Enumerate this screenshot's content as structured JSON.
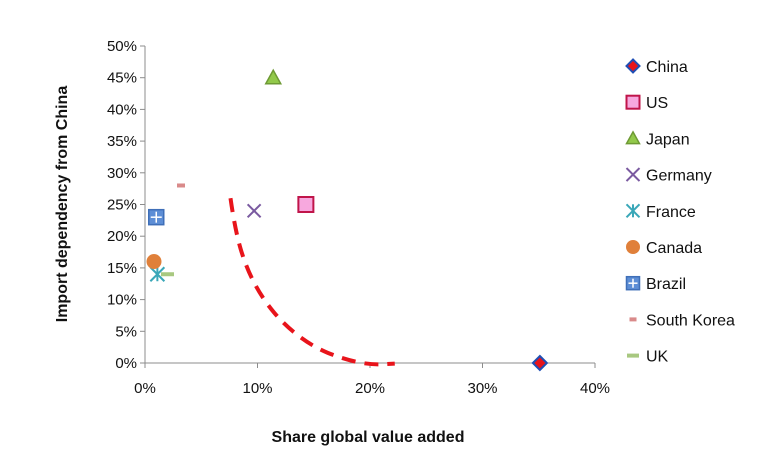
{
  "chart_data": {
    "type": "scatter",
    "xlabel": "Share global value added",
    "ylabel": "Import dependency from China",
    "xlim": [
      0,
      0.4
    ],
    "ylim": [
      0,
      0.5
    ],
    "x_ticks": [
      "0%",
      "10%",
      "20%",
      "30%",
      "40%"
    ],
    "y_ticks": [
      "0%",
      "5%",
      "10%",
      "15%",
      "20%",
      "25%",
      "30%",
      "35%",
      "40%",
      "45%",
      "50%"
    ],
    "grid": false,
    "legend_position": "right",
    "series": [
      {
        "name": "China",
        "marker": "diamond",
        "color": "#1f4fb5",
        "fill": "#e8141b",
        "x": 0.351,
        "y": 0.0
      },
      {
        "name": "US",
        "marker": "square",
        "color": "#c0154a",
        "fill": "#f7a8de",
        "x": 0.143,
        "y": 0.25
      },
      {
        "name": "Japan",
        "marker": "triangle",
        "color": "#6e9a34",
        "fill": "#92c94a",
        "x": 0.114,
        "y": 0.45
      },
      {
        "name": "Germany",
        "marker": "x",
        "color": "#7a5aa0",
        "fill": "#7a5aa0",
        "x": 0.097,
        "y": 0.24
      },
      {
        "name": "France",
        "marker": "star",
        "color": "#3aa7b8",
        "fill": "#3aa7b8",
        "x": 0.011,
        "y": 0.14
      },
      {
        "name": "Canada",
        "marker": "circle",
        "color": "#e0803a",
        "fill": "#e0803a",
        "x": 0.008,
        "y": 0.16
      },
      {
        "name": "Brazil",
        "marker": "square-plus",
        "color": "#3f6fb8",
        "fill": "#5d8ed6",
        "x": 0.01,
        "y": 0.23
      },
      {
        "name": "South Korea",
        "marker": "dash",
        "color": "#d98a8a",
        "fill": "#d98a8a",
        "x": 0.032,
        "y": 0.28
      },
      {
        "name": "UK",
        "marker": "dash",
        "color": "#a8c880",
        "fill": "#a8c880",
        "x": 0.02,
        "y": 0.14
      }
    ],
    "curve": {
      "color": "#e8141b",
      "style": "dashed",
      "x": [
        0.076,
        0.08,
        0.09,
        0.105,
        0.125,
        0.15,
        0.175,
        0.2,
        0.222
      ],
      "y": [
        0.26,
        0.21,
        0.15,
        0.1,
        0.058,
        0.025,
        0.007,
        -0.003,
        -0.001
      ]
    }
  }
}
